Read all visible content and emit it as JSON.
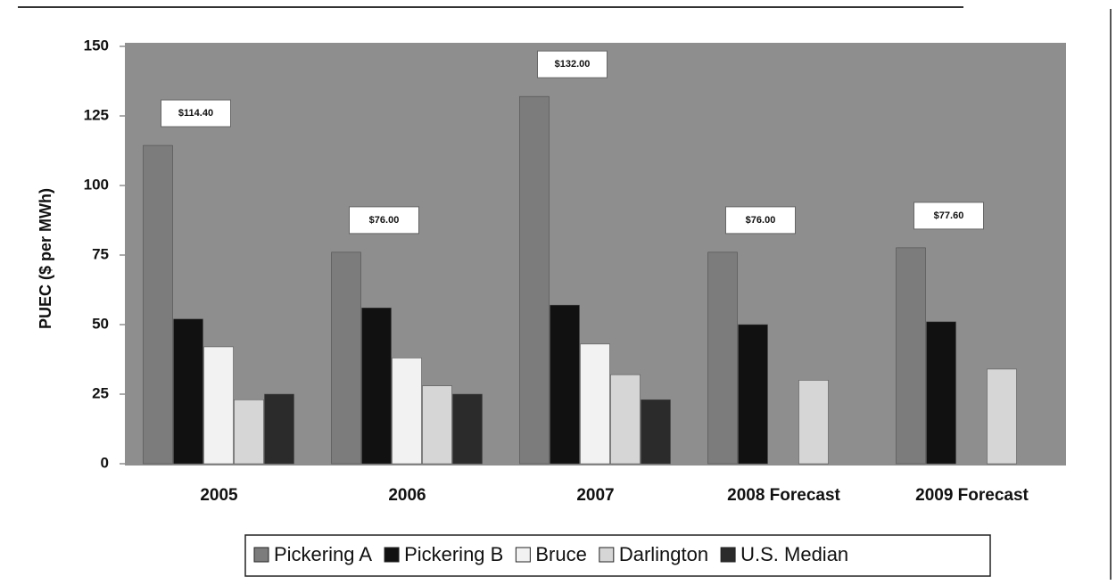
{
  "chart_data": {
    "type": "bar",
    "y_label": "PUEC ($ per MWh)",
    "categories": [
      "2005",
      "2006",
      "2007",
      "2008 Forecast",
      "2009 Forecast"
    ],
    "series": [
      {
        "name": "Pickering A",
        "color": "#7c7c7c",
        "values": [
          114.4,
          76.0,
          132.0,
          76.0,
          77.6
        ],
        "value_labels": [
          "$114.40",
          "$76.00",
          "$132.00",
          "$76.00",
          "$77.60"
        ]
      },
      {
        "name": "Pickering B",
        "color": "#111111",
        "values": [
          52,
          56,
          57,
          50,
          51
        ]
      },
      {
        "name": "Bruce",
        "color": "#f2f2f2",
        "values": [
          42,
          38,
          43,
          null,
          null
        ]
      },
      {
        "name": "Darlington",
        "color": "#d6d6d6",
        "values": [
          23,
          28,
          32,
          30,
          34
        ]
      },
      {
        "name": "U.S. Median",
        "color": "#2b2b2b",
        "values": [
          25,
          25,
          23,
          null,
          null
        ]
      }
    ],
    "ylim": [
      0,
      150
    ],
    "yticks": [
      0,
      25,
      50,
      75,
      100,
      125,
      150
    ],
    "legend": "bottom"
  }
}
